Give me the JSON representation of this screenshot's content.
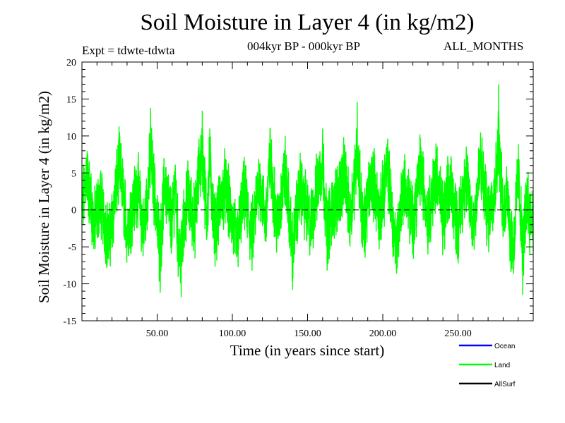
{
  "chart_data": {
    "type": "line",
    "title": "Soil Moisture in Layer 4 (in kg/m2)",
    "experiment": "Expt = tdwte-tdwta",
    "period": "004kyr BP - 000kyr BP",
    "months": "ALL_MONTHS",
    "xlabel": "Time (in years since start)",
    "ylabel": "Soil Moisture in Layer 4 (in kg/m2)",
    "xlim": [
      0,
      300
    ],
    "ylim": [
      -15,
      20
    ],
    "x_ticks": [
      "50.00",
      "100.00",
      "150.00",
      "200.00",
      "250.00"
    ],
    "x_tick_values": [
      50,
      100,
      150,
      200,
      250
    ],
    "y_ticks": [
      "-15",
      "-10",
      "-5",
      "0",
      "5",
      "10",
      "15",
      "20"
    ],
    "y_tick_values": [
      -15,
      -10,
      -5,
      0,
      5,
      10,
      15,
      20
    ],
    "zero_line": 0,
    "legend": [
      {
        "name": "Ocean",
        "color": "#0000ff"
      },
      {
        "name": "Land",
        "color": "#00ff00"
      },
      {
        "name": "AllSurf",
        "color": "#000000"
      }
    ],
    "series": [
      {
        "name": "Land",
        "color": "#00ff00",
        "note": "monthly noisy series oscillating around 0, approx. range -12 to 17",
        "anchors": [
          [
            0,
            -2
          ],
          [
            3,
            8.6
          ],
          [
            8,
            -5
          ],
          [
            12,
            2
          ],
          [
            18,
            -9
          ],
          [
            25,
            10.5
          ],
          [
            30,
            -6
          ],
          [
            37,
            5
          ],
          [
            41,
            -7
          ],
          [
            45,
            9
          ],
          [
            45.6,
            13.8
          ],
          [
            50,
            -4
          ],
          [
            52,
            -11.2
          ],
          [
            55,
            6
          ],
          [
            60,
            -5
          ],
          [
            62,
            7
          ],
          [
            64,
            -9.5
          ],
          [
            66,
            -11.8
          ],
          [
            70,
            3
          ],
          [
            75,
            -4
          ],
          [
            78,
            9
          ],
          [
            80,
            13.4
          ],
          [
            83,
            -3
          ],
          [
            85,
            11
          ],
          [
            88,
            -6
          ],
          [
            95,
            5
          ],
          [
            100,
            -4
          ],
          [
            103,
            -9
          ],
          [
            108,
            3
          ],
          [
            113,
            -8
          ],
          [
            118,
            7
          ],
          [
            122,
            -4
          ],
          [
            125,
            11
          ],
          [
            130,
            -5
          ],
          [
            135,
            9
          ],
          [
            140,
            -10.8
          ],
          [
            145,
            5
          ],
          [
            152,
            -5
          ],
          [
            158,
            8
          ],
          [
            160,
            11
          ],
          [
            163,
            -6
          ],
          [
            170,
            3
          ],
          [
            175,
            8
          ],
          [
            178,
            -4
          ],
          [
            182,
            10
          ],
          [
            183,
            14.6
          ],
          [
            187,
            -6
          ],
          [
            193,
            8
          ],
          [
            198,
            -3
          ],
          [
            203,
            10
          ],
          [
            207,
            -5
          ],
          [
            209,
            -10
          ],
          [
            214,
            6
          ],
          [
            220,
            -4
          ],
          [
            225,
            10
          ],
          [
            230,
            -3
          ],
          [
            236,
            9
          ],
          [
            240,
            -4
          ],
          [
            245,
            6
          ],
          [
            250,
            -6
          ],
          [
            255,
            8
          ],
          [
            260,
            -5
          ],
          [
            265,
            10.5
          ],
          [
            270,
            -3
          ],
          [
            275,
            6
          ],
          [
            277,
            17
          ],
          [
            280,
            -3
          ],
          [
            283,
            5
          ],
          [
            285,
            -8
          ],
          [
            287,
            -10.2
          ],
          [
            290,
            8.7
          ],
          [
            293,
            -11.5
          ],
          [
            296,
            3
          ],
          [
            298,
            -3
          ]
        ]
      },
      {
        "name": "Ocean",
        "color": "#0000ff",
        "values": []
      },
      {
        "name": "AllSurf",
        "color": "#000000",
        "values": []
      }
    ]
  }
}
